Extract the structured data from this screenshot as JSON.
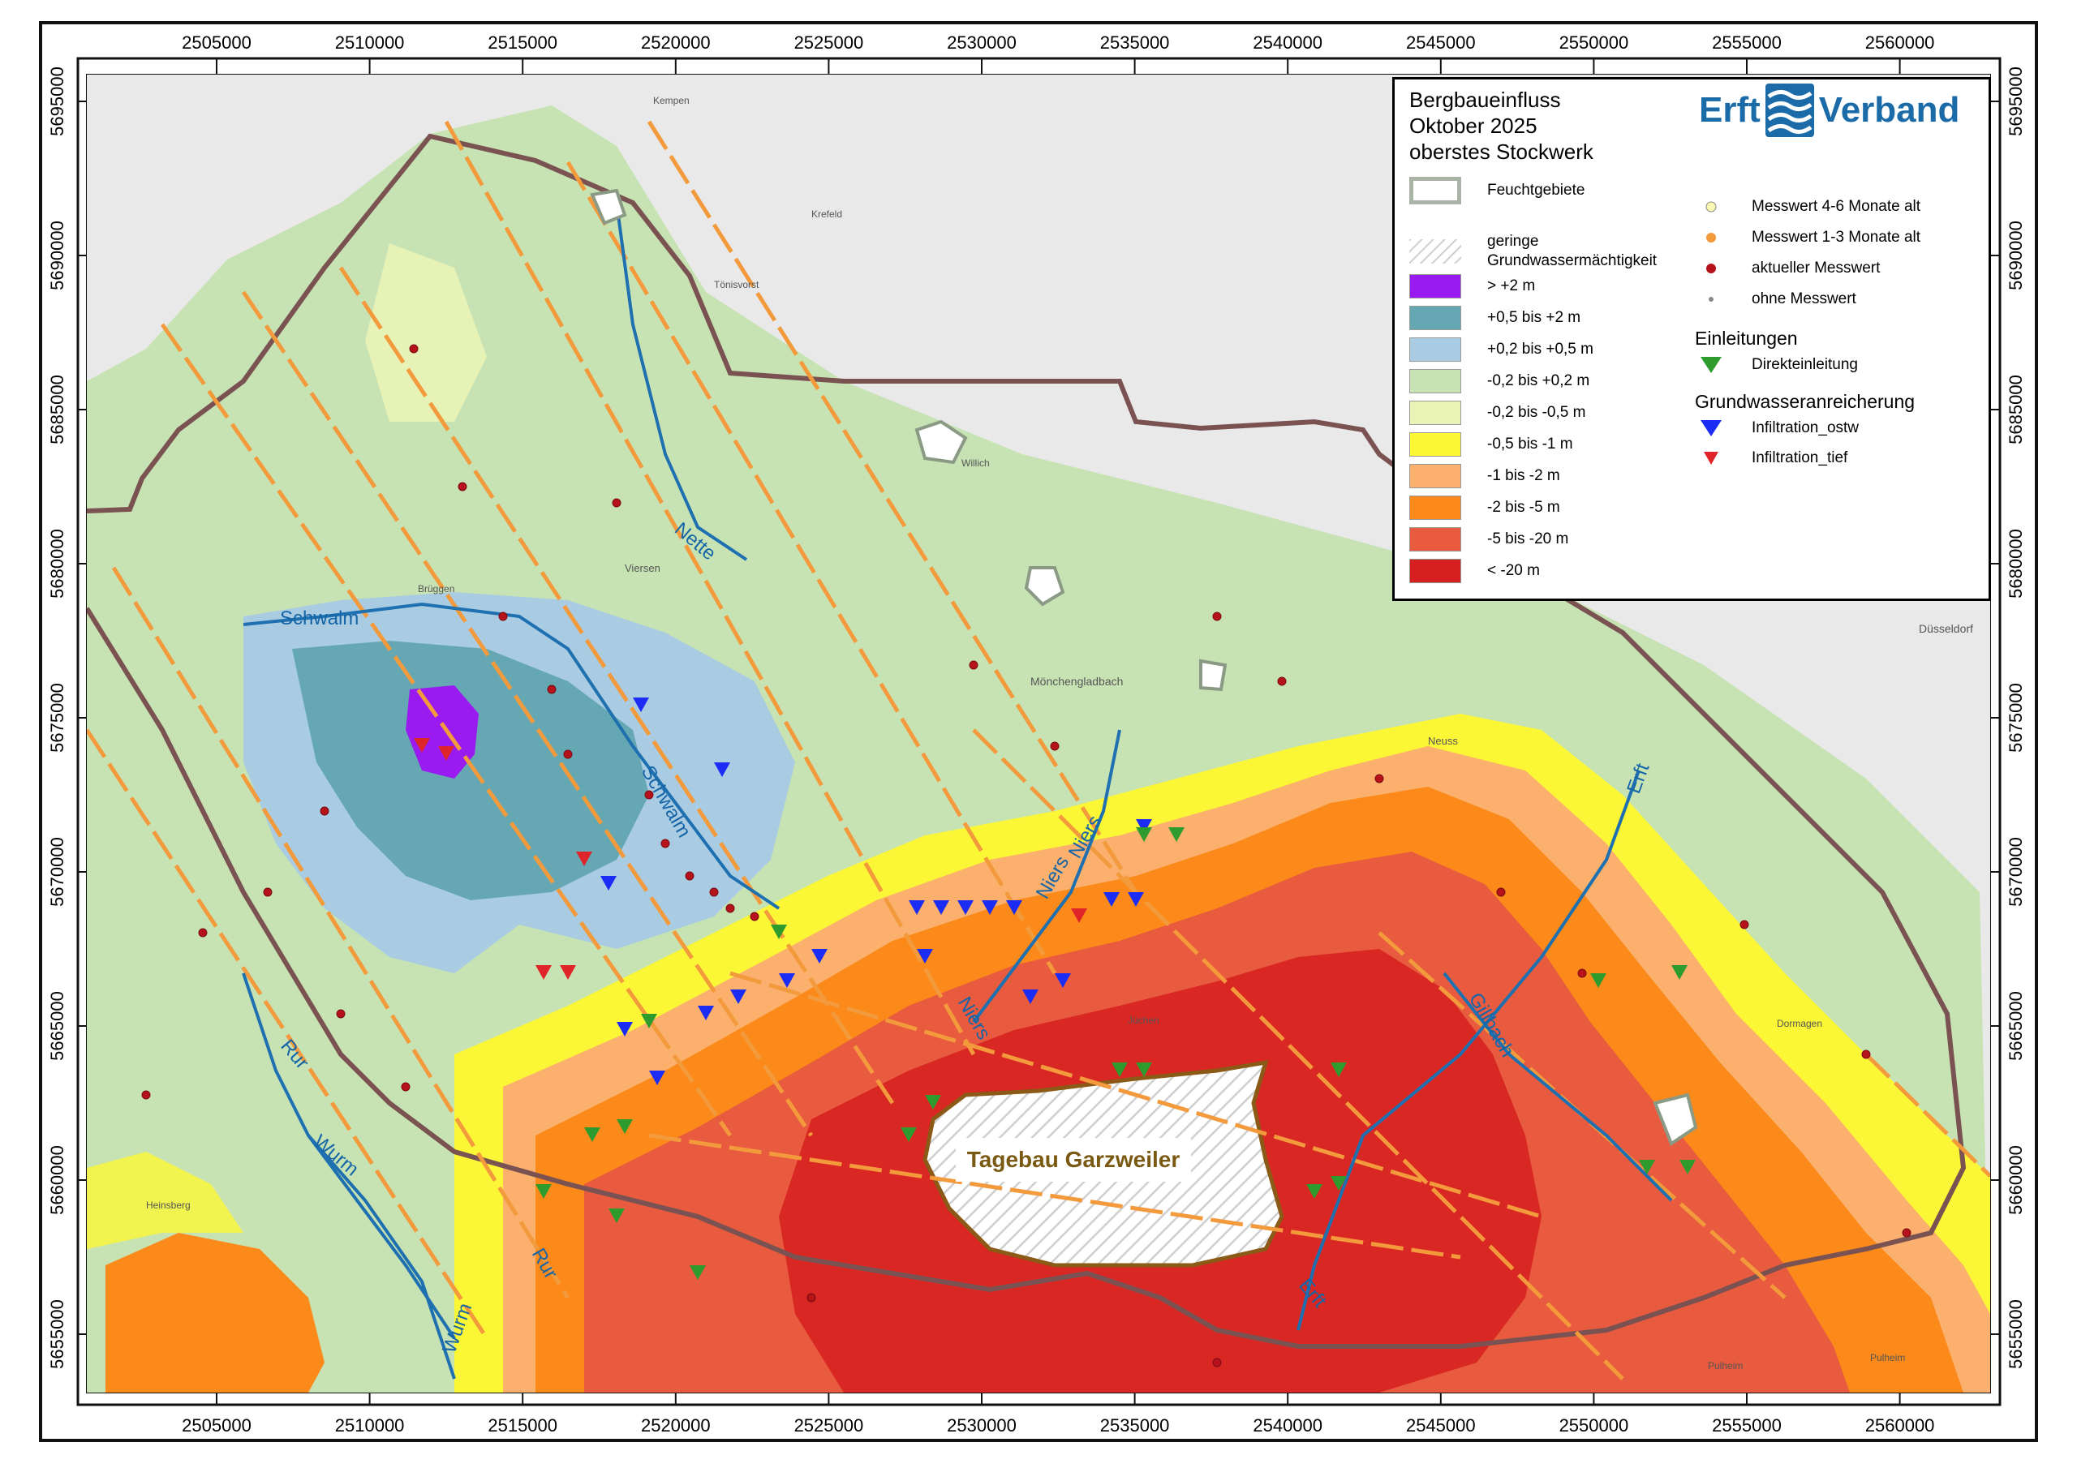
{
  "map": {
    "x_ticks": [
      "2505000",
      "2510000",
      "2515000",
      "2520000",
      "2525000",
      "2530000",
      "2535000",
      "2540000",
      "2545000",
      "2550000",
      "2555000",
      "2560000"
    ],
    "y_ticks": [
      "5695000",
      "5690000",
      "5685000",
      "5680000",
      "5675000",
      "5670000",
      "5665000",
      "5660000",
      "5655000"
    ],
    "rivers": [
      "Schwalm",
      "Nette",
      "Schwalm",
      "Niers",
      "Niers",
      "Niers",
      "Rur",
      "Wurm",
      "Rur",
      "Wurm",
      "Erft",
      "Gillbach",
      "Erft"
    ],
    "places": [
      "Kempen",
      "Krefeld",
      "Tönisvorst",
      "Willich",
      "Viersen",
      "Mönchengladbach",
      "Neuss",
      "Düsseldorf",
      "Jüchen",
      "Dormagen",
      "Pulheim",
      "Pulheim",
      "Brüggen",
      "Heinsberg"
    ],
    "tagebau": "Tagebau Garzweiler",
    "colors": {
      "boundary": "#7a5252",
      "faults": "#f39a3c",
      "rivers": "#1e70b0",
      "class_gt2": "#9a1bf0",
      "class_05_2": "#65a8b3",
      "class_02_05": "#a9cce2",
      "class_m02_02": "#c7e3b4",
      "class_m05_m02": "#e9f3b6",
      "class_m1_m05": "#fbf636",
      "class_m2_m1": "#fbb06d",
      "class_m5_m2": "#fb8a1a",
      "class_m20_m5": "#e85b3e",
      "class_lt20": "#d61f1f"
    }
  },
  "legend": {
    "title1": "Bergbaueinfluss",
    "title2": "Oktober 2025",
    "title3": "oberstes Stockwerk",
    "feucht": "Feuchtgebiete",
    "geringe1": "geringe",
    "geringe2": "Grundwassermächtigkeit",
    "classes": [
      {
        "label": "> +2 m",
        "color": "#9a1bf0"
      },
      {
        "label": "+0,5 bis +2 m",
        "color": "#65a8b3"
      },
      {
        "label": "+0,2 bis +0,5 m",
        "color": "#a9cce2"
      },
      {
        "label": "-0,2 bis +0,2 m",
        "color": "#c7e3b4"
      },
      {
        "label": "-0,2 bis -0,5 m",
        "color": "#e9f3b6"
      },
      {
        "label": "-0,5 bis -1 m",
        "color": "#fbf636"
      },
      {
        "label": "-1 bis -2 m",
        "color": "#fbb06d"
      },
      {
        "label": "-2 bis -5 m",
        "color": "#fb8a1a"
      },
      {
        "label": "-5 bis -20 m",
        "color": "#e85b3e"
      },
      {
        "label": "< -20 m",
        "color": "#d61f1f"
      }
    ],
    "mw46": "Messwert 4-6 Monate alt",
    "mw13": "Messwert 1-3 Monate alt",
    "mwakt": "aktueller Messwert",
    "mwohne": "ohne Messwert",
    "einleitungen": "Einleitungen",
    "direkt": "Direkteinleitung",
    "gwa": "Grundwasseranreicherung",
    "ostw": "Infiltration_ostw",
    "tief": "Infiltration_tief",
    "logo_left": "Erft",
    "logo_right": "Verband"
  }
}
